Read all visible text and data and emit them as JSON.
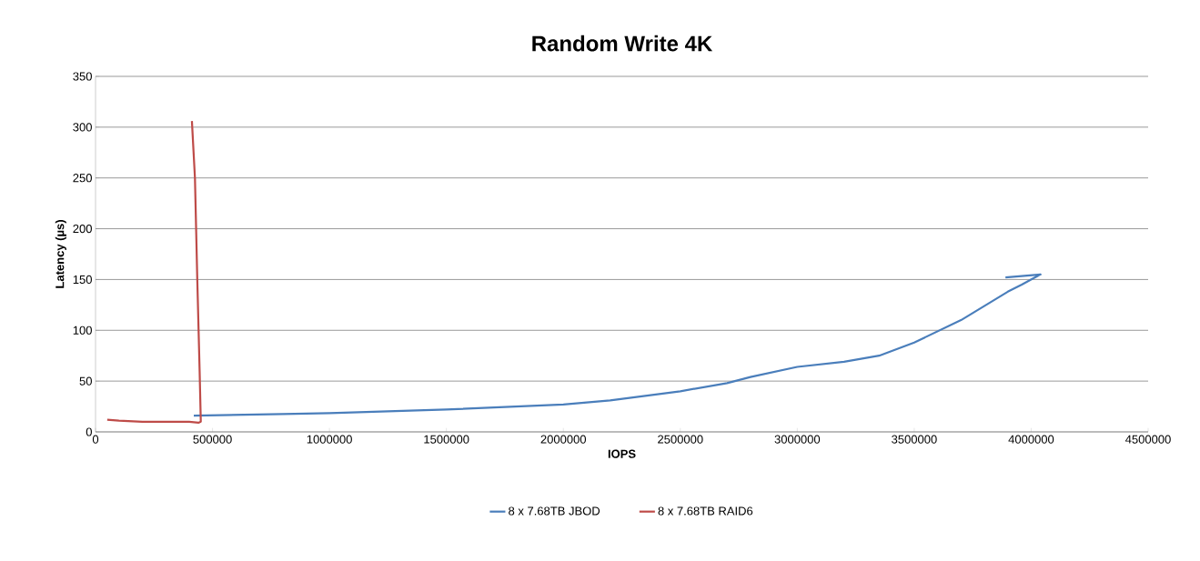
{
  "chart_data": {
    "type": "line",
    "title": "Random Write 4K",
    "xlabel": "IOPS",
    "ylabel": "Latency (µs)",
    "xlim": [
      0,
      4500000
    ],
    "xticks": [
      0,
      500000,
      1000000,
      1500000,
      2000000,
      2500000,
      3000000,
      3500000,
      4000000,
      4500000
    ],
    "ylim": [
      0,
      350
    ],
    "yticks": [
      0,
      50,
      100,
      150,
      200,
      250,
      300,
      350
    ],
    "grid": "y",
    "legend": "bottom",
    "marker": "none",
    "line_style": "solid",
    "series": [
      {
        "name": "8 x 7.68TB JBOD",
        "color": "#4a7ebb",
        "x": [
          420000,
          800000,
          1000000,
          1500000,
          2000000,
          2200000,
          2500000,
          2700000,
          2800000,
          3000000,
          3200000,
          3350000,
          3500000,
          3700000,
          3900000,
          3960000,
          4040000,
          3890000
        ],
        "values": [
          16,
          17.5,
          18.5,
          22,
          27,
          31,
          40,
          48,
          54,
          64,
          69,
          75,
          88,
          110,
          138,
          145,
          155,
          152
        ]
      },
      {
        "name": "8 x 7.68TB RAID6",
        "color": "#be4b48",
        "x": [
          50000,
          100000,
          200000,
          300000,
          400000,
          440000,
          450000,
          445000,
          435000,
          425000,
          412000
        ],
        "values": [
          12,
          11,
          10,
          10,
          10,
          9,
          10,
          60,
          150,
          250,
          306
        ]
      }
    ]
  }
}
